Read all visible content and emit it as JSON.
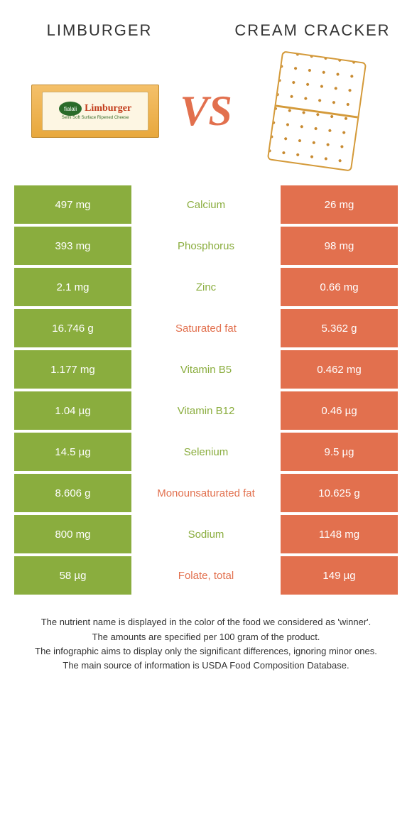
{
  "colors": {
    "green": "#8aad3e",
    "orange": "#e2704e",
    "vs_color": "#e2704e",
    "text": "#333333",
    "white_text": "#ffffff"
  },
  "header": {
    "left_title": "Limburger",
    "right_title": "Cream cracker",
    "vs": "VS"
  },
  "images": {
    "cheese_brand": "fialali",
    "cheese_name": "Limburger",
    "cheese_sub": "Semi Soft Surface Ripened Cheese"
  },
  "rows": [
    {
      "left": "497 mg",
      "mid": "Calcium",
      "right": "26 mg",
      "winner": "left"
    },
    {
      "left": "393 mg",
      "mid": "Phosphorus",
      "right": "98 mg",
      "winner": "left"
    },
    {
      "left": "2.1 mg",
      "mid": "Zinc",
      "right": "0.66 mg",
      "winner": "left"
    },
    {
      "left": "16.746 g",
      "mid": "Saturated fat",
      "right": "5.362 g",
      "winner": "right"
    },
    {
      "left": "1.177 mg",
      "mid": "Vitamin B5",
      "right": "0.462 mg",
      "winner": "left"
    },
    {
      "left": "1.04 µg",
      "mid": "Vitamin B12",
      "right": "0.46 µg",
      "winner": "left"
    },
    {
      "left": "14.5 µg",
      "mid": "Selenium",
      "right": "9.5 µg",
      "winner": "left"
    },
    {
      "left": "8.606 g",
      "mid": "Monounsaturated fat",
      "right": "10.625 g",
      "winner": "right"
    },
    {
      "left": "800 mg",
      "mid": "Sodium",
      "right": "1148 mg",
      "winner": "left"
    },
    {
      "left": "58 µg",
      "mid": "Folate, total",
      "right": "149 µg",
      "winner": "right"
    }
  ],
  "footnotes": [
    "The nutrient name is displayed in the color of the food we considered as 'winner'.",
    "The amounts are specified per 100 gram of the product.",
    "The infographic aims to display only the significant differences, ignoring minor ones.",
    "The main source of information is USDA Food Composition Database."
  ]
}
